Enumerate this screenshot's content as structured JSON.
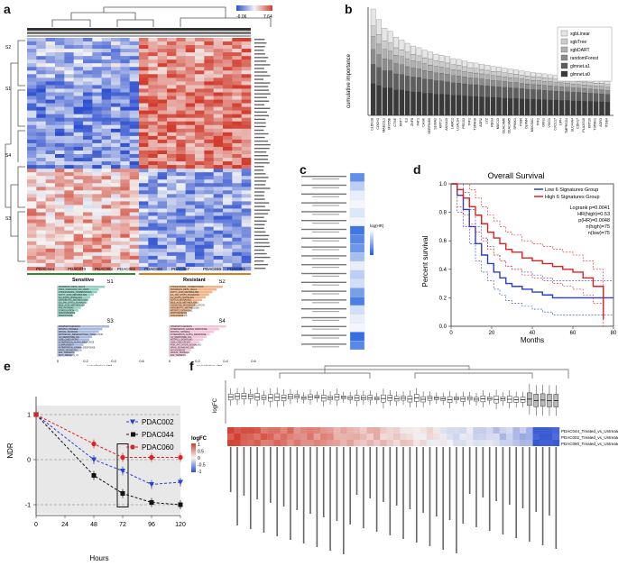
{
  "panels": {
    "a": {
      "letter": "a",
      "scale_min": "-6.06",
      "scale_max": "7.64",
      "row_groups": [
        "S2",
        "S1",
        "S4",
        "S3"
      ],
      "samples": [
        "PDAC044",
        "PDAC070",
        "PDAC092",
        "PDAC002",
        "PDAC060",
        "PDAC087",
        "PDAC046",
        "PDAC051"
      ],
      "group_sensitive": "Sensitive",
      "group_resistant": "Resistant",
      "enrichment": [
        {
          "title": "S1",
          "color": "#8fcfbf",
          "terms": [
            "PANCREAS_BETA_CELLS",
            "TNFA_SIGNALING_VIA_NFKB",
            "CHOLESTEROL_HOMEOSTASIS",
            "FATTY_ACID_METABOLISM",
            "IL2_STAT5_SIGNALING",
            "XENOBIOTIC_METABOLISM",
            "IL6_JAK_STAT3_SIGNALING",
            "BILE_ACID_METABOLISM",
            "P53_PATHWAY",
            "COAGULATION",
            "ANGIOGENESIS",
            "PEROXISOME"
          ],
          "values": [
            0.55,
            0.48,
            0.46,
            0.42,
            0.38,
            0.36,
            0.33,
            0.3,
            0.27,
            0.24,
            0.2,
            0.17
          ]
        },
        {
          "title": "S2",
          "color": "#f0b488",
          "terms": [
            "CHOLESTEROL_HOMEOSTASIS",
            "PANCREAS_BETA_CELLS",
            "FATTY_ACID_METABOLISM",
            "IL6_JAK_STAT3_SIGNALING",
            "IL2_STAT5_SIGNALING",
            "NOTCH_SIGNALING",
            "BILE_ACID_METABOLISM",
            "OXIDATIVE_PHOSPHORYLATION",
            "XENOBIOTIC_METABOLISM",
            "MTORC1_SIGNALING",
            "ADIPOGENESIS",
            "ANGIOGENESIS"
          ],
          "values": [
            0.62,
            0.55,
            0.5,
            0.46,
            0.42,
            0.38,
            0.34,
            0.3,
            0.27,
            0.24,
            0.2,
            0.16
          ]
        },
        {
          "title": "S3",
          "color": "#a9b8dd",
          "terms": [
            "SPERMATOGENESIS",
            "MITOTIC_SPINDLE",
            "APICAL_SURFACE",
            "EPITHELIAL_MESENCHYMAL_TRANSITION",
            "UV_RESPONSE_DN",
            "G2M_CHECKPOINT",
            "INTERFERON_ALPHA_RESPONSE",
            "COMPLEMENT",
            "INTERFERON_GAMMA_RESPONSE",
            "KRAS_SIGNALING_DN",
            "E2F_TARGETS",
            "MYC_TARGETS_V1"
          ],
          "values": [
            0.6,
            0.52,
            0.48,
            0.44,
            0.4,
            0.37,
            0.34,
            0.3,
            0.27,
            0.24,
            0.2,
            0.17
          ]
        },
        {
          "title": "S4",
          "color": "#f3c4da",
          "terms": [
            "SPERMATOGENESIS",
            "INTERFERON_GAMMA_RESPONSE",
            "MITOTIC_SPINDLE",
            "INTERFERON_ALPHA_RESPONSE",
            "UV_RESPONSE_DN",
            "MTORC1_SIGNALING",
            "G2M_CHECKPOINT",
            "PI3K_AKT_MTOR_SIGNALING",
            "KRAS_SIGNALING_DN",
            "MYOGENESIS",
            "APICAL_SURFACE",
            "E2F_TARGETS"
          ],
          "values": [
            0.66,
            0.58,
            0.52,
            0.47,
            0.43,
            0.39,
            0.35,
            0.31,
            0.28,
            0.25,
            0.21,
            0.18
          ]
        }
      ],
      "corr_ticks": [
        "0",
        "0.2",
        "0.4",
        "0.6"
      ],
      "corr_label": "correlation (R)"
    },
    "b": {
      "letter": "b",
      "ylabel": "cumulative importance",
      "legend": [
        "xgbLinear",
        "xgbTree",
        "xgbDART",
        "randomForest",
        "glmnet.a1",
        "glmnet.a0"
      ],
      "legend_colors": [
        "#e6e6e6",
        "#cccccc",
        "#b0b0b0",
        "#8c8c8c",
        "#5e5e5e",
        "#3a3a3a"
      ]
    },
    "c": {
      "letter": "c",
      "legend_title": "log(HR)"
    },
    "d": {
      "letter": "d",
      "title": "Overall Survival",
      "ylabel": "Percent survival",
      "xlabel": "Months",
      "legend": [
        "Low 6 Signatures Group",
        "High 6 Signatures Group"
      ],
      "stats": [
        "Logrank p=0.0041",
        "HR(high)=0.53",
        "p(HR)=0.0048",
        "n(high)=75",
        "n(low)=75"
      ],
      "xticks": [
        "0",
        "20",
        "40",
        "60",
        "80"
      ],
      "yticks": [
        "0.0",
        "0.2",
        "0.4",
        "0.6",
        "0.8",
        "1.0"
      ]
    },
    "e": {
      "letter": "e",
      "ylabel": "NDR",
      "xlabel": "Hours",
      "xticks": [
        "0",
        "24",
        "48",
        "72",
        "96",
        "120"
      ],
      "yticks": [
        "-1",
        "0",
        "1"
      ],
      "series_names": [
        "PDAC002",
        "PDAC044",
        "PDAC060"
      ],
      "series_colors": [
        "#2b3fd0",
        "#111111",
        "#e02020"
      ]
    },
    "f": {
      "letter": "f",
      "ylabel": "logFC",
      "legend_title": "logFC",
      "legend_ticks": [
        "1",
        "0.5",
        "0",
        "-0.5",
        "-1"
      ],
      "row_labels": [
        "PDAC044_Treated_vs_Untreated",
        "PDAC002_Treated_vs_Untreated",
        "PDAC060_Treated_vs_Untreated"
      ]
    }
  },
  "chart_data": [
    {
      "type": "bar",
      "panel": "b",
      "ylabel": "cumulative importance",
      "categories": [
        "CLDN18",
        "COCH1",
        "MAB21L1",
        "MYO5B",
        "CTSE",
        "KRT7",
        "IL2",
        "ZNF8",
        "FAT1",
        "CASK",
        "SERPINB5",
        "S100A2",
        "KRT17",
        "ANXA10",
        "LAMC2",
        "LGALS4",
        "PRSS3",
        "TFF1",
        "TSPAN8",
        "AGR2",
        "LYZ",
        "REG4",
        "MUC13",
        "CEACAM6",
        "CEACAM5",
        "SPINK1",
        "PIGR",
        "OLFM4",
        "MUC5AC",
        "TFF2",
        "GKN1",
        "VSIG1",
        "CXCL17",
        "LIPH",
        "TMPRSS4",
        "SLC44A4",
        "CDH17",
        "PLA2G10",
        "KRT20",
        "TSPAN1",
        "AGR3",
        "ITGB4"
      ],
      "series": [
        {
          "name": "glmnet.a0",
          "values": [
            1.5,
            1.4,
            1.3,
            1.3,
            1.2,
            1.2,
            1.15,
            1.1,
            1.1,
            1.05,
            1.05,
            1.0,
            1.0,
            0.98,
            0.95,
            0.95,
            0.92,
            0.9,
            0.9,
            0.88,
            0.86,
            0.85,
            0.84,
            0.82,
            0.8,
            0.8,
            0.78,
            0.77,
            0.76,
            0.75,
            0.74,
            0.73,
            0.72,
            0.71,
            0.7,
            0.69,
            0.68,
            0.67,
            0.66,
            0.65,
            0.64,
            0.63
          ]
        },
        {
          "name": "glmnet.a1",
          "values": [
            0.9,
            0.85,
            0.8,
            0.8,
            0.75,
            0.72,
            0.7,
            0.7,
            0.68,
            0.66,
            0.64,
            0.63,
            0.62,
            0.6,
            0.58,
            0.57,
            0.56,
            0.55,
            0.54,
            0.53,
            0.52,
            0.51,
            0.5,
            0.5,
            0.49,
            0.48,
            0.47,
            0.46,
            0.45,
            0.45,
            0.44,
            0.43,
            0.42,
            0.42,
            0.41,
            0.4,
            0.4,
            0.39,
            0.38,
            0.38,
            0.37,
            0.36
          ]
        },
        {
          "name": "randomForest",
          "values": [
            0.7,
            0.6,
            0.55,
            0.5,
            0.48,
            0.46,
            0.44,
            0.42,
            0.4,
            0.4,
            0.38,
            0.37,
            0.36,
            0.35,
            0.34,
            0.33,
            0.32,
            0.31,
            0.3,
            0.3,
            0.29,
            0.28,
            0.28,
            0.27,
            0.26,
            0.26,
            0.25,
            0.25,
            0.24,
            0.24,
            0.23,
            0.23,
            0.22,
            0.22,
            0.21,
            0.21,
            0.2,
            0.2,
            0.2,
            0.19,
            0.19,
            0.18
          ]
        },
        {
          "name": "xgbDART",
          "values": [
            0.6,
            0.5,
            0.45,
            0.42,
            0.4,
            0.38,
            0.36,
            0.34,
            0.33,
            0.32,
            0.3,
            0.3,
            0.29,
            0.28,
            0.27,
            0.27,
            0.26,
            0.25,
            0.25,
            0.24,
            0.24,
            0.23,
            0.23,
            0.22,
            0.22,
            0.21,
            0.21,
            0.2,
            0.2,
            0.2,
            0.19,
            0.19,
            0.18,
            0.18,
            0.18,
            0.17,
            0.17,
            0.17,
            0.16,
            0.16,
            0.16,
            0.15
          ]
        },
        {
          "name": "xgbTree",
          "values": [
            0.5,
            0.45,
            0.4,
            0.38,
            0.35,
            0.33,
            0.32,
            0.3,
            0.29,
            0.28,
            0.27,
            0.26,
            0.25,
            0.25,
            0.24,
            0.23,
            0.23,
            0.22,
            0.22,
            0.21,
            0.21,
            0.2,
            0.2,
            0.19,
            0.19,
            0.19,
            0.18,
            0.18,
            0.17,
            0.17,
            0.17,
            0.16,
            0.16,
            0.16,
            0.15,
            0.15,
            0.15,
            0.14,
            0.14,
            0.14,
            0.14,
            0.13
          ]
        },
        {
          "name": "xgbLinear",
          "values": [
            0.8,
            0.7,
            0.6,
            0.55,
            0.5,
            0.45,
            0.42,
            0.4,
            0.38,
            0.36,
            0.34,
            0.32,
            0.31,
            0.3,
            0.29,
            0.28,
            0.27,
            0.26,
            0.25,
            0.24,
            0.24,
            0.23,
            0.22,
            0.22,
            0.21,
            0.2,
            0.2,
            0.19,
            0.19,
            0.18,
            0.18,
            0.17,
            0.17,
            0.16,
            0.16,
            0.16,
            0.15,
            0.15,
            0.15,
            0.14,
            0.14,
            0.14
          ]
        }
      ]
    },
    {
      "type": "line",
      "panel": "d",
      "title": "Overall Survival",
      "xlabel": "Months",
      "ylabel": "Percent survival",
      "xlim": [
        0,
        80
      ],
      "ylim": [
        0,
        1
      ],
      "series": [
        {
          "name": "Low 6 Signatures Group",
          "x": [
            0,
            3,
            6,
            9,
            12,
            15,
            18,
            21,
            24,
            27,
            30,
            35,
            40,
            45,
            50,
            55,
            60,
            65,
            70,
            75,
            80
          ],
          "y": [
            1.0,
            0.92,
            0.82,
            0.7,
            0.58,
            0.5,
            0.44,
            0.38,
            0.34,
            0.3,
            0.28,
            0.26,
            0.24,
            0.22,
            0.2,
            0.2,
            0.2,
            0.2,
            0.2,
            0.2,
            0.2
          ]
        },
        {
          "name": "High 6 Signatures Group",
          "x": [
            0,
            3,
            6,
            9,
            12,
            15,
            18,
            21,
            24,
            27,
            30,
            35,
            40,
            45,
            50,
            55,
            60,
            65,
            70,
            75
          ],
          "y": [
            1.0,
            0.96,
            0.9,
            0.84,
            0.78,
            0.72,
            0.66,
            0.62,
            0.58,
            0.54,
            0.52,
            0.48,
            0.46,
            0.44,
            0.42,
            0.4,
            0.38,
            0.34,
            0.28,
            0.05
          ]
        }
      ]
    },
    {
      "type": "line",
      "panel": "e",
      "xlabel": "Hours",
      "ylabel": "NDR",
      "xlim": [
        0,
        120
      ],
      "ylim": [
        -1.2,
        1.2
      ],
      "x": [
        0,
        48,
        72,
        96,
        120
      ],
      "series": [
        {
          "name": "PDAC002",
          "values": [
            1.0,
            0.0,
            -0.25,
            -0.55,
            -0.5
          ]
        },
        {
          "name": "PDAC044",
          "values": [
            1.0,
            -0.35,
            -0.75,
            -0.95,
            -1.0
          ]
        },
        {
          "name": "PDAC060",
          "values": [
            1.0,
            0.35,
            0.05,
            0.05,
            0.05
          ]
        }
      ]
    }
  ]
}
